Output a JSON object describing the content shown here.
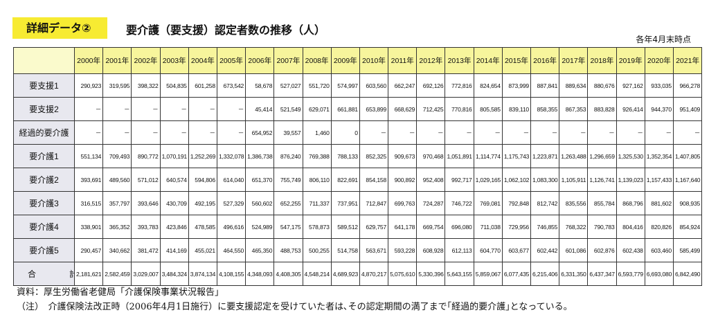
{
  "header": {
    "badge": "詳細データ②",
    "title": "要介護（要支援）認定者数の推移（人）",
    "as_of": "各年4月末時点"
  },
  "table": {
    "years": [
      "2000年",
      "2001年",
      "2002年",
      "2003年",
      "2004年",
      "2005年",
      "2006年",
      "2007年",
      "2008年",
      "2009年",
      "2010年",
      "2011年",
      "2012年",
      "2013年",
      "2014年",
      "2015年",
      "2016年",
      "2017年",
      "2018年",
      "2019年",
      "2020年",
      "2021年"
    ],
    "rows": [
      {
        "label": "要支援1",
        "values": [
          "290,923",
          "319,595",
          "398,322",
          "504,835",
          "601,258",
          "673,542",
          "58,678",
          "527,027",
          "551,720",
          "574,997",
          "603,560",
          "662,247",
          "692,126",
          "772,816",
          "824,654",
          "873,999",
          "887,841",
          "889,634",
          "880,676",
          "927,162",
          "933,035",
          "966,278"
        ]
      },
      {
        "label": "要支援2",
        "values": [
          "－",
          "－",
          "－",
          "－",
          "－",
          "－",
          "45,414",
          "521,549",
          "629,071",
          "661,881",
          "653,899",
          "668,629",
          "712,425",
          "770,816",
          "805,585",
          "839,110",
          "858,355",
          "867,353",
          "883,828",
          "926,414",
          "944,370",
          "951,409"
        ]
      },
      {
        "label": "経過的要介護",
        "values": [
          "－",
          "－",
          "－",
          "－",
          "－",
          "－",
          "654,952",
          "39,557",
          "1,460",
          "0",
          "－",
          "－",
          "－",
          "－",
          "－",
          "－",
          "－",
          "－",
          "－",
          "－",
          "－",
          "－"
        ]
      },
      {
        "label": "要介護1",
        "values": [
          "551,134",
          "709,493",
          "890,772",
          "1,070,191",
          "1,252,269",
          "1,332,078",
          "1,386,738",
          "876,240",
          "769,388",
          "788,133",
          "852,325",
          "909,673",
          "970,468",
          "1,051,891",
          "1,114,774",
          "1,175,743",
          "1,223,871",
          "1,263,488",
          "1,296,659",
          "1,325,530",
          "1,352,354",
          "1,407,805"
        ]
      },
      {
        "label": "要介護2",
        "values": [
          "393,691",
          "489,560",
          "571,012",
          "640,574",
          "594,806",
          "614,040",
          "651,370",
          "755,749",
          "806,110",
          "822,691",
          "854,158",
          "900,892",
          "952,408",
          "992,717",
          "1,029,165",
          "1,062,102",
          "1,083,300",
          "1,105,911",
          "1,126,741",
          "1,139,023",
          "1,157,433",
          "1,167,640"
        ]
      },
      {
        "label": "要介護3",
        "values": [
          "316,515",
          "357,797",
          "393,646",
          "430,709",
          "492,195",
          "527,329",
          "560,602",
          "652,255",
          "711,337",
          "737,951",
          "712,847",
          "699,763",
          "724,287",
          "746,722",
          "769,081",
          "792,848",
          "812,742",
          "835,556",
          "855,784",
          "868,796",
          "881,602",
          "908,935"
        ]
      },
      {
        "label": "要介護4",
        "values": [
          "338,901",
          "365,352",
          "393,783",
          "423,846",
          "478,585",
          "496,616",
          "524,989",
          "547,175",
          "578,873",
          "589,512",
          "629,757",
          "641,178",
          "669,754",
          "696,080",
          "711,038",
          "729,956",
          "746,855",
          "768,322",
          "790,783",
          "804,416",
          "820,826",
          "854,924"
        ]
      },
      {
        "label": "要介護5",
        "values": [
          "290,457",
          "340,662",
          "381,472",
          "414,169",
          "455,021",
          "464,550",
          "465,350",
          "488,753",
          "500,255",
          "514,758",
          "563,671",
          "593,228",
          "608,928",
          "612,113",
          "604,770",
          "603,677",
          "602,442",
          "601,086",
          "602,876",
          "602,438",
          "603,460",
          "585,499"
        ]
      },
      {
        "label": "合　計",
        "values": [
          "2,181,621",
          "2,582,459",
          "3,029,007",
          "3,484,324",
          "3,874,134",
          "4,108,155",
          "4,348,093",
          "4,408,305",
          "4,548,214",
          "4,689,923",
          "4,870,217",
          "5,075,610",
          "5,330,396",
          "5,643,155",
          "5,859,067",
          "6,077,435",
          "6,215,406",
          "6,331,350",
          "6,437,347",
          "6,593,779",
          "6,693,080",
          "6,842,490"
        ]
      }
    ]
  },
  "notes": {
    "source": "資料：厚生労働省老健局「介護保険事業状況報告」",
    "note": "（注）　介護保険法改正時（2006年4月1日施行）に要支援認定を受けていた者は､その認定期間の満了まで｢経過的要介護｣となっている。"
  }
}
